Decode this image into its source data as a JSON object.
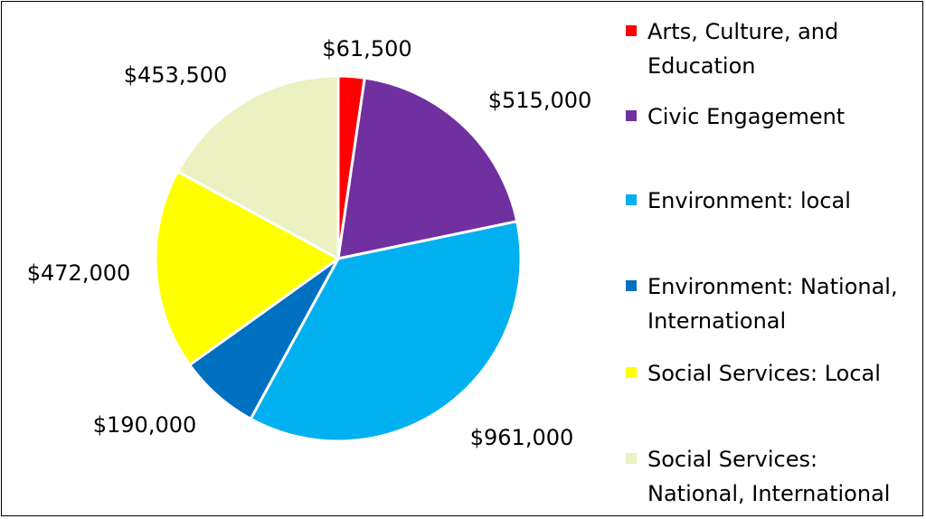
{
  "chart_data": {
    "type": "pie",
    "categories": [
      "Arts, Culture, and Education",
      "Civic Engagement",
      "Environment: local",
      "Environment: National, International",
      "Social Services: Local",
      "Social Services: National, International"
    ],
    "values": [
      61500,
      515000,
      961000,
      190000,
      472000,
      453500
    ],
    "data_labels": [
      "$61,500",
      "$515,000",
      "$961,000",
      "$190,000",
      "$472,000",
      "$453,500"
    ],
    "colors": [
      "#ff0000",
      "#7030a0",
      "#00b0f0",
      "#0070c0",
      "#ffff00",
      "#ebf1c0"
    ],
    "legend_position": "right",
    "start_angle": "12 o'clock",
    "direction": "clockwise"
  }
}
